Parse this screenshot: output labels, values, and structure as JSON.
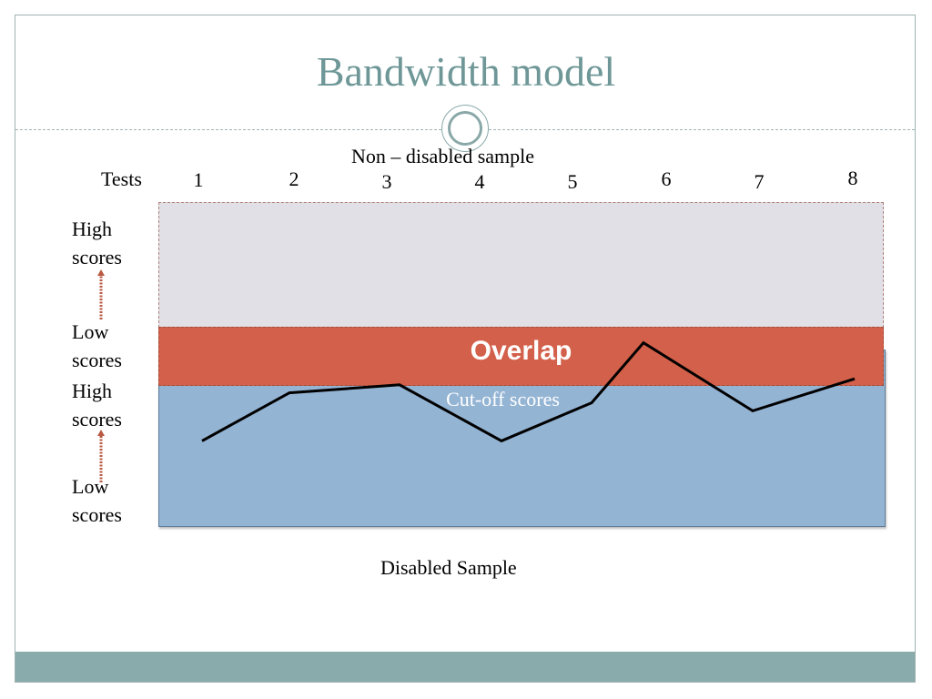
{
  "slide": {
    "title": "Bandwidth model",
    "accent_color": "#6f9797",
    "footer_color": "#8aabab"
  },
  "diagram": {
    "top_label": "Non – disabled sample",
    "bottom_label": "Disabled Sample",
    "tests_label": "Tests",
    "tests": [
      "1",
      "2",
      "3",
      "4",
      "5",
      "6",
      "7",
      "8"
    ],
    "upper_scale": {
      "high": "High\nscores",
      "low": "Low\nscores"
    },
    "lower_scale": {
      "high": "High\nscores",
      "low": "Low\nscores"
    },
    "overlap_label": "Overlap",
    "cutoff_label": "Cut-off scores",
    "colors": {
      "non_disabled_band": "#e0e0e6",
      "disabled_band": "#94b4d4",
      "overlap_band": "#d3604a",
      "arrow": "#b85a44",
      "profile_line": "#000000"
    },
    "profile_line": {
      "description_note": "zig-zag score profile across tests 1-8 within disabled band",
      "points": [
        {
          "test": 1,
          "level": 0.43
        },
        {
          "test": 2,
          "level": 0.67
        },
        {
          "test": 3,
          "level": 0.71
        },
        {
          "test": 4,
          "level": 0.43
        },
        {
          "test": 5,
          "level": 0.62
        },
        {
          "test": 6,
          "level": 0.92
        },
        {
          "test": 7,
          "level": 0.58
        },
        {
          "test": 8,
          "level": 0.74
        }
      ]
    }
  }
}
